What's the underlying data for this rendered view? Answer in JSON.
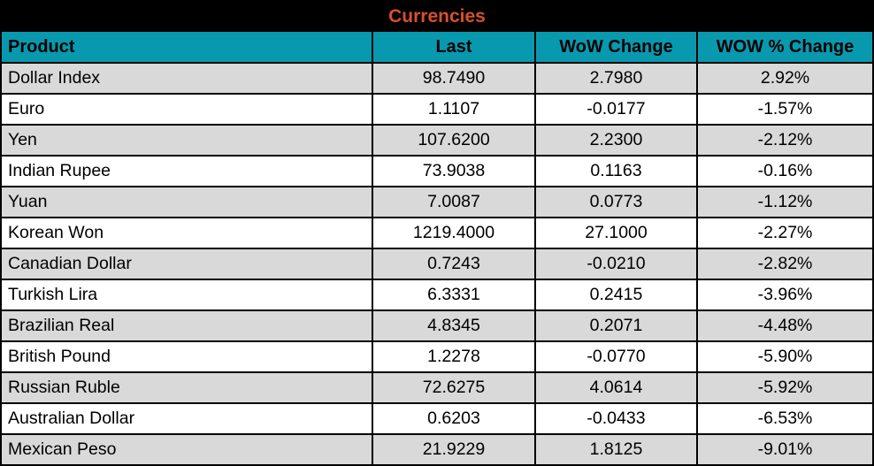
{
  "colors": {
    "title_text": "#D8502A",
    "title_bg": "#000000",
    "header_bg": "#0899AE",
    "header_text": "#000000",
    "row_stripe_bg": "#D9D9D9",
    "row_bg": "#FFFFFF",
    "grid_border": "#000000"
  },
  "chart_data": {
    "type": "table",
    "title": "Currencies",
    "columns": [
      "Product",
      "Last",
      "WoW Change",
      "WOW % Change"
    ],
    "rows": [
      [
        "Dollar Index",
        "98.7490",
        "2.7980",
        "2.92%"
      ],
      [
        "Euro",
        "1.1107",
        "-0.0177",
        "-1.57%"
      ],
      [
        "Yen",
        "107.6200",
        "2.2300",
        "-2.12%"
      ],
      [
        "Indian Rupee",
        "73.9038",
        "0.1163",
        "-0.16%"
      ],
      [
        "Yuan",
        "7.0087",
        "0.0773",
        "-1.12%"
      ],
      [
        "Korean Won",
        "1219.4000",
        "27.1000",
        "-2.27%"
      ],
      [
        "Canadian Dollar",
        "0.7243",
        "-0.0210",
        "-2.82%"
      ],
      [
        "Turkish Lira",
        "6.3331",
        "0.2415",
        "-3.96%"
      ],
      [
        "Brazilian Real",
        "4.8345",
        "0.2071",
        "-4.48%"
      ],
      [
        "British Pound",
        "1.2278",
        "-0.0770",
        "-5.90%"
      ],
      [
        "Russian Ruble",
        "72.6275",
        "4.0614",
        "-5.92%"
      ],
      [
        "Australian Dollar",
        "0.6203",
        "-0.0433",
        "-6.53%"
      ],
      [
        "Mexican Peso",
        "21.9229",
        "1.8125",
        "-9.01%"
      ]
    ]
  }
}
